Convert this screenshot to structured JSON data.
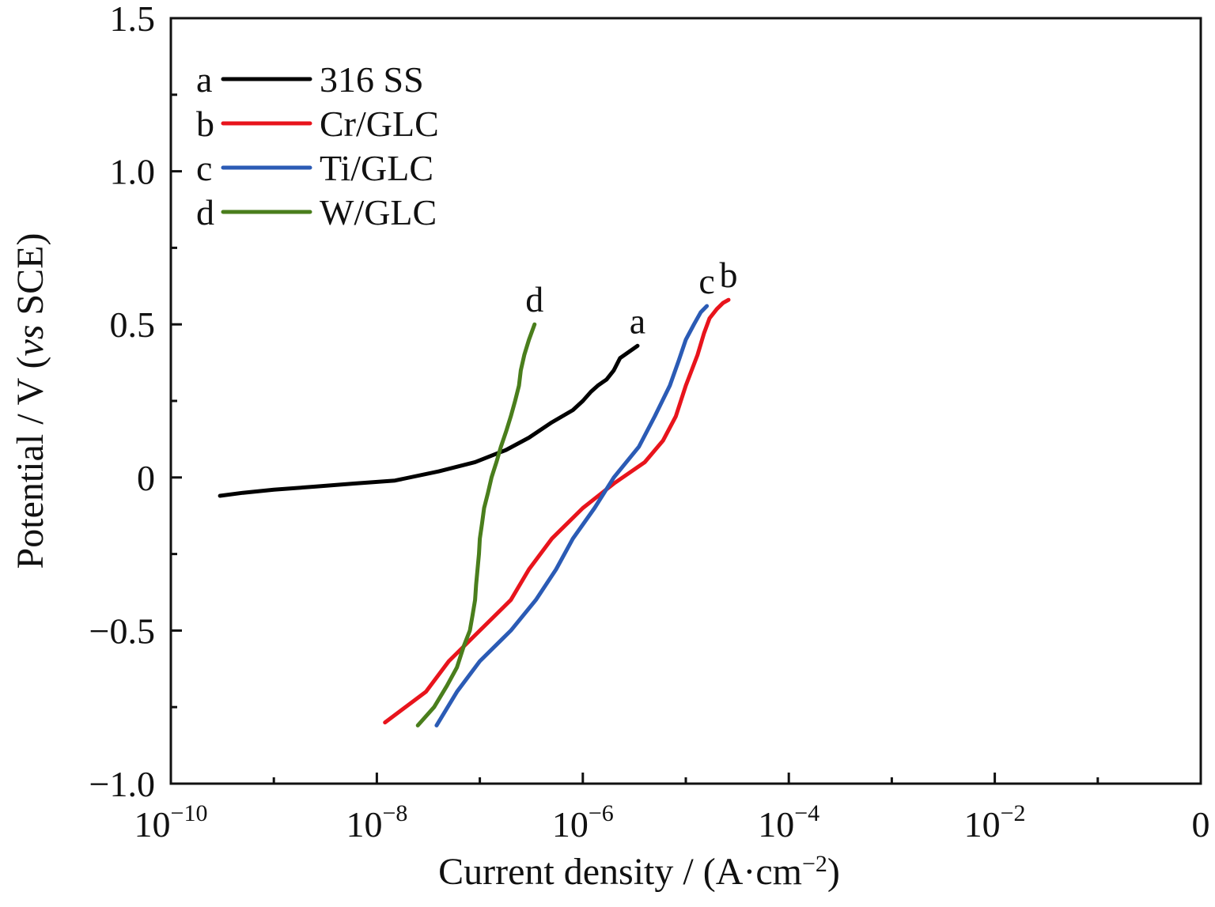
{
  "chart_data": {
    "type": "line",
    "xscale": "log",
    "xlabel": "Current density / (A·cm⁻²)",
    "xlabel_parts": {
      "prefix": "Current density / (A·cm",
      "sup": "−2",
      "suffix": ")"
    },
    "ylabel": "Potential / V (vs SCE)",
    "ylabel_parts": {
      "prefix": "Potential / V (",
      "italic": "vs",
      "suffix": " SCE)"
    },
    "xlim": [
      1e-10,
      1
    ],
    "ylim": [
      -1.0,
      1.5
    ],
    "x_ticks": [
      {
        "base": "10",
        "exp": "−10",
        "value": 1e-10
      },
      {
        "base": "10",
        "exp": "−8",
        "value": 1e-08
      },
      {
        "base": "10",
        "exp": "−6",
        "value": 1e-06
      },
      {
        "base": "10",
        "exp": "−4",
        "value": 0.0001
      },
      {
        "base": "10",
        "exp": "−2",
        "value": 0.01
      },
      {
        "base": "0",
        "exp": "",
        "value": 1
      }
    ],
    "y_ticks": [
      {
        "label": "1.5",
        "value": 1.5
      },
      {
        "label": "1.0",
        "value": 1.0
      },
      {
        "label": "0.5",
        "value": 0.5
      },
      {
        "label": "0",
        "value": 0
      },
      {
        "label": "−0.5",
        "value": -0.5
      },
      {
        "label": "−1.0",
        "value": -1.0
      }
    ],
    "legend_position": "top-left",
    "series": [
      {
        "id": "a",
        "name": "316 SS",
        "color": "#000000",
        "points": [
          [
            3.4e-06,
            0.43
          ],
          [
            2.3e-06,
            0.39
          ],
          [
            2e-06,
            0.35
          ],
          [
            1.7e-06,
            0.32
          ],
          [
            1.4e-06,
            0.3
          ],
          [
            1.2e-06,
            0.28
          ],
          [
            1e-06,
            0.25
          ],
          [
            8e-07,
            0.22
          ],
          [
            5e-07,
            0.18
          ],
          [
            3e-07,
            0.13
          ],
          [
            1.8e-07,
            0.09
          ],
          [
            9e-08,
            0.05
          ],
          [
            4e-08,
            0.02
          ],
          [
            1.5e-08,
            -0.01
          ],
          [
            6e-09,
            -0.02
          ],
          [
            2.5e-09,
            -0.03
          ],
          [
            1e-09,
            -0.04
          ],
          [
            5e-10,
            -0.05
          ],
          [
            3e-10,
            -0.06
          ]
        ]
      },
      {
        "id": "b",
        "name": "Cr/GLC",
        "color": "#e8141c",
        "points": [
          [
            1.2e-08,
            -0.8
          ],
          [
            3e-08,
            -0.7
          ],
          [
            5e-08,
            -0.6
          ],
          [
            1e-07,
            -0.5
          ],
          [
            2e-07,
            -0.4
          ],
          [
            3e-07,
            -0.3
          ],
          [
            5e-07,
            -0.2
          ],
          [
            1e-06,
            -0.1
          ],
          [
            2e-06,
            -0.02
          ],
          [
            4e-06,
            0.05
          ],
          [
            6e-06,
            0.12
          ],
          [
            8e-06,
            0.2
          ],
          [
            1e-05,
            0.3
          ],
          [
            1.3e-05,
            0.4
          ],
          [
            1.5e-05,
            0.47
          ],
          [
            1.7e-05,
            0.52
          ],
          [
            2e-05,
            0.55
          ],
          [
            2.3e-05,
            0.57
          ],
          [
            2.6e-05,
            0.58
          ]
        ]
      },
      {
        "id": "c",
        "name": "Ti/GLC",
        "color": "#2b5bb5",
        "points": [
          [
            3.8e-08,
            -0.81
          ],
          [
            6e-08,
            -0.7
          ],
          [
            1e-07,
            -0.6
          ],
          [
            2e-07,
            -0.5
          ],
          [
            3.5e-07,
            -0.4
          ],
          [
            5.5e-07,
            -0.3
          ],
          [
            8e-07,
            -0.2
          ],
          [
            1.3e-06,
            -0.1
          ],
          [
            2e-06,
            0.0
          ],
          [
            3.5e-06,
            0.1
          ],
          [
            5e-06,
            0.2
          ],
          [
            7e-06,
            0.3
          ],
          [
            8.5e-06,
            0.38
          ],
          [
            1e-05,
            0.45
          ],
          [
            1.2e-05,
            0.5
          ],
          [
            1.4e-05,
            0.54
          ],
          [
            1.6e-05,
            0.56
          ]
        ]
      },
      {
        "id": "d",
        "name": "W/GLC",
        "color": "#4a7e1c",
        "points": [
          [
            2.5e-08,
            -0.81
          ],
          [
            3.6e-08,
            -0.75
          ],
          [
            4.8e-08,
            -0.68
          ],
          [
            6e-08,
            -0.62
          ],
          [
            7e-08,
            -0.55
          ],
          [
            8e-08,
            -0.5
          ],
          [
            8.5e-08,
            -0.45
          ],
          [
            9e-08,
            -0.4
          ],
          [
            9.2e-08,
            -0.35
          ],
          [
            9.5e-08,
            -0.3
          ],
          [
            9.8e-08,
            -0.25
          ],
          [
            1e-07,
            -0.2
          ],
          [
            1.05e-07,
            -0.15
          ],
          [
            1.1e-07,
            -0.1
          ],
          [
            1.2e-07,
            -0.05
          ],
          [
            1.3e-07,
            0.0
          ],
          [
            1.45e-07,
            0.05
          ],
          [
            1.6e-07,
            0.1
          ],
          [
            1.8e-07,
            0.15
          ],
          [
            2e-07,
            0.2
          ],
          [
            2.2e-07,
            0.25
          ],
          [
            2.4e-07,
            0.3
          ],
          [
            2.5e-07,
            0.35
          ],
          [
            2.7e-07,
            0.4
          ],
          [
            3e-07,
            0.45
          ],
          [
            3.4e-07,
            0.5
          ]
        ]
      }
    ]
  }
}
